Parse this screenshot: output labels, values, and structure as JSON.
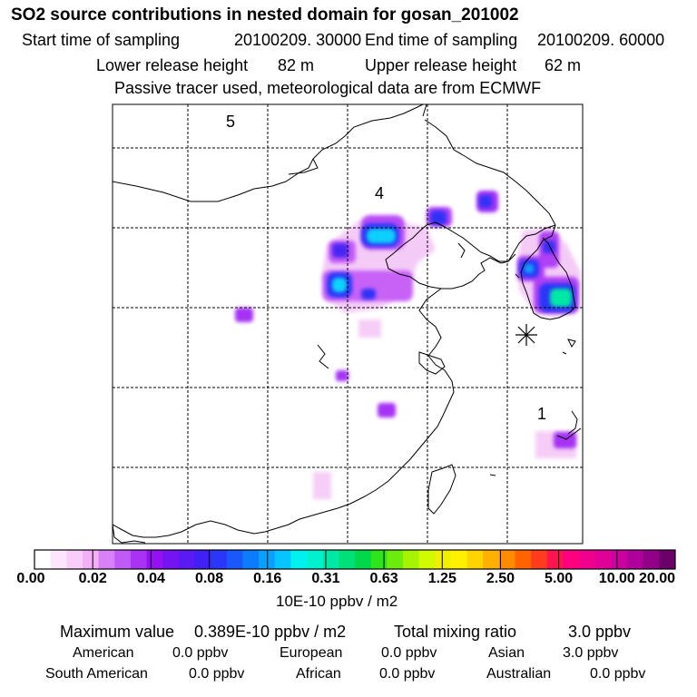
{
  "title": "SO2 source contributions in nested domain for gosan_201002",
  "sampling": {
    "start_label": "Start time of sampling",
    "start_value": "20100209. 30000",
    "end_label": "End time of sampling",
    "end_value": "20100209. 60000"
  },
  "release": {
    "lower_label": "Lower release height",
    "lower_value": "82 m",
    "upper_label": "Upper release height",
    "upper_value": "62 m"
  },
  "tracer_note": "Passive tracer used, meteorological data are from ECMWF",
  "map": {
    "region_labels": [
      "5",
      "4",
      "1"
    ],
    "station_marker": "gosan-asterisk",
    "colors": {
      "frame": "#000000",
      "grid": "#000000",
      "coast": "#000000"
    },
    "plumes": [
      {
        "name": "plume-beijing-core",
        "level": "0.16"
      },
      {
        "name": "plume-hebei-core",
        "level": "0.16"
      },
      {
        "name": "plume-liaoning",
        "level": "0.08"
      },
      {
        "name": "plume-northeast",
        "level": "0.04"
      },
      {
        "name": "plume-korea-north",
        "level": "0.08"
      },
      {
        "name": "plume-korea-south",
        "level": "0.31"
      },
      {
        "name": "plume-shanxi",
        "level": "0.04"
      },
      {
        "name": "plume-shandong",
        "level": "0.02"
      },
      {
        "name": "plume-central-china",
        "level": "0.04"
      },
      {
        "name": "plume-japan-south",
        "level": "0.04"
      },
      {
        "name": "plume-south-china",
        "level": "0.02"
      }
    ]
  },
  "colorbar": {
    "tick_labels": [
      "0.00",
      "0.02",
      "0.04",
      "0.08",
      "0.16",
      "0.31",
      "0.63",
      "1.25",
      "2.50",
      "5.00",
      "10.00",
      "20.00"
    ],
    "colors": [
      "#ffffff",
      "#fde6fd",
      "#f9cdf9",
      "#f3b0f6",
      "#d780f8",
      "#c05af7",
      "#aa32f4",
      "#9510f2",
      "#7414f2",
      "#5a1af3",
      "#4020f5",
      "#2a36f8",
      "#1a58fb",
      "#0c7cfc",
      "#0aa0fd",
      "#08c4fe",
      "#00f0f0",
      "#00f0d0",
      "#00e8a6",
      "#00e07a",
      "#00d84a",
      "#2ee41a",
      "#6cec0c",
      "#a6f404",
      "#d2fa00",
      "#f0f000",
      "#fff000",
      "#ffd400",
      "#ffb000",
      "#ff8c00",
      "#ff6400",
      "#ff3c1e",
      "#ff1450",
      "#ff007f",
      "#f0008c",
      "#e00098",
      "#cc00a0",
      "#b0009c",
      "#900088",
      "#6a0068"
    ],
    "unit_label": "10E-10 ppbv / m2"
  },
  "summary": {
    "max_label": "Maximum value",
    "max_value": "0.389E-10 ppbv / m2",
    "total_label": "Total mixing ratio",
    "total_value": "3.0 ppbv",
    "sources": [
      {
        "name": "American",
        "value": "0.0 ppbv"
      },
      {
        "name": "European",
        "value": "0.0 ppbv"
      },
      {
        "name": "Asian",
        "value": "3.0 ppbv"
      },
      {
        "name": "South American",
        "value": "0.0 ppbv"
      },
      {
        "name": "African",
        "value": "0.0 ppbv"
      },
      {
        "name": "Australian",
        "value": "0.0 ppbv"
      }
    ]
  }
}
